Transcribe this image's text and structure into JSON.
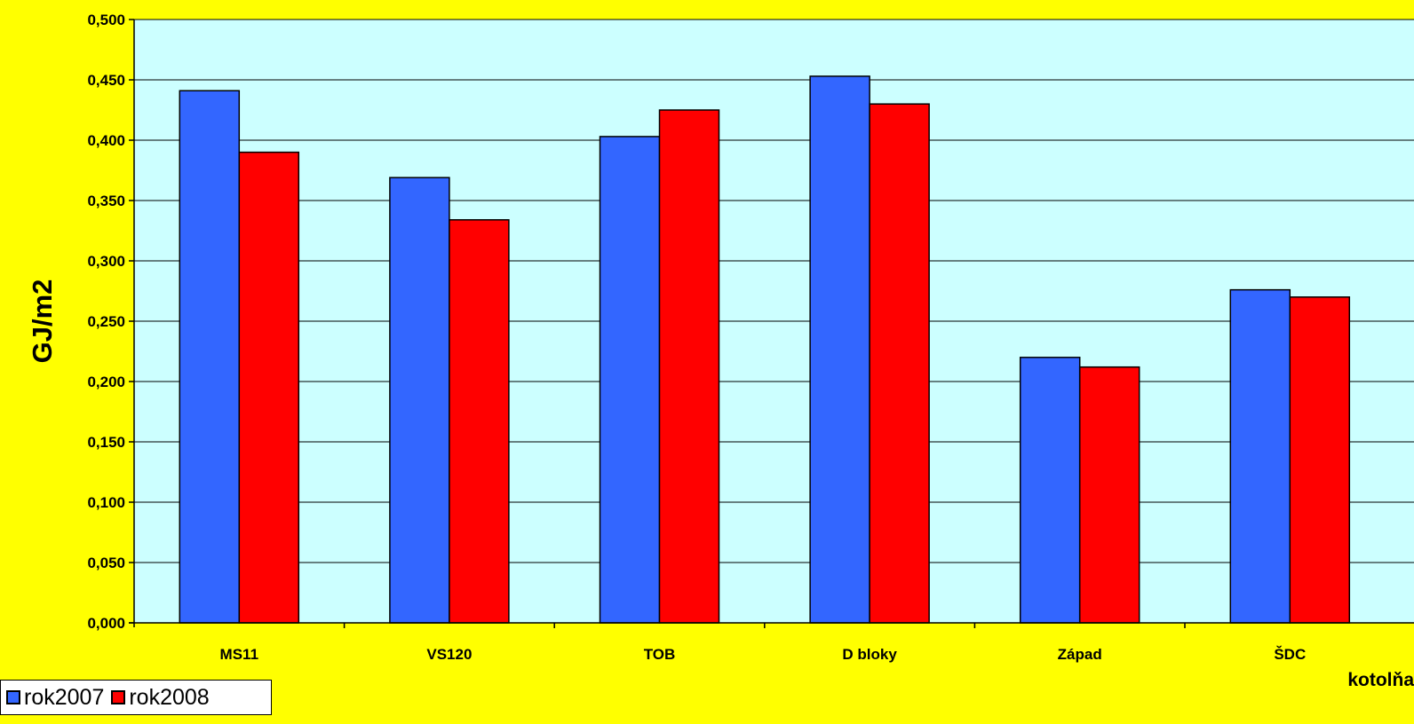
{
  "chart_data": {
    "type": "bar",
    "title": "",
    "ylabel": "GJ/m2",
    "xlabel": "kotolňa",
    "ylim": [
      0,
      0.5
    ],
    "ytick_step": 0.05,
    "ytick_labels": [
      "0,000",
      "0,050",
      "0,100",
      "0,150",
      "0,200",
      "0,250",
      "0,300",
      "0,350",
      "0,400",
      "0,450",
      "0,500"
    ],
    "categories": [
      "MS11",
      "VS120",
      "TOB",
      "D bloky",
      "Západ",
      "ŠDC"
    ],
    "series": [
      {
        "name": "rok2007",
        "color": "#3366FF",
        "values": [
          0.441,
          0.369,
          0.403,
          0.453,
          0.22,
          0.276
        ]
      },
      {
        "name": "rok2008",
        "color": "#FF0000",
        "values": [
          0.39,
          0.334,
          0.425,
          0.43,
          0.212,
          0.27
        ]
      }
    ],
    "grid": true,
    "legend_position": "bottom-left"
  },
  "colors": {
    "background": "#FFFF00",
    "plot_area": "#CCFFFF"
  }
}
